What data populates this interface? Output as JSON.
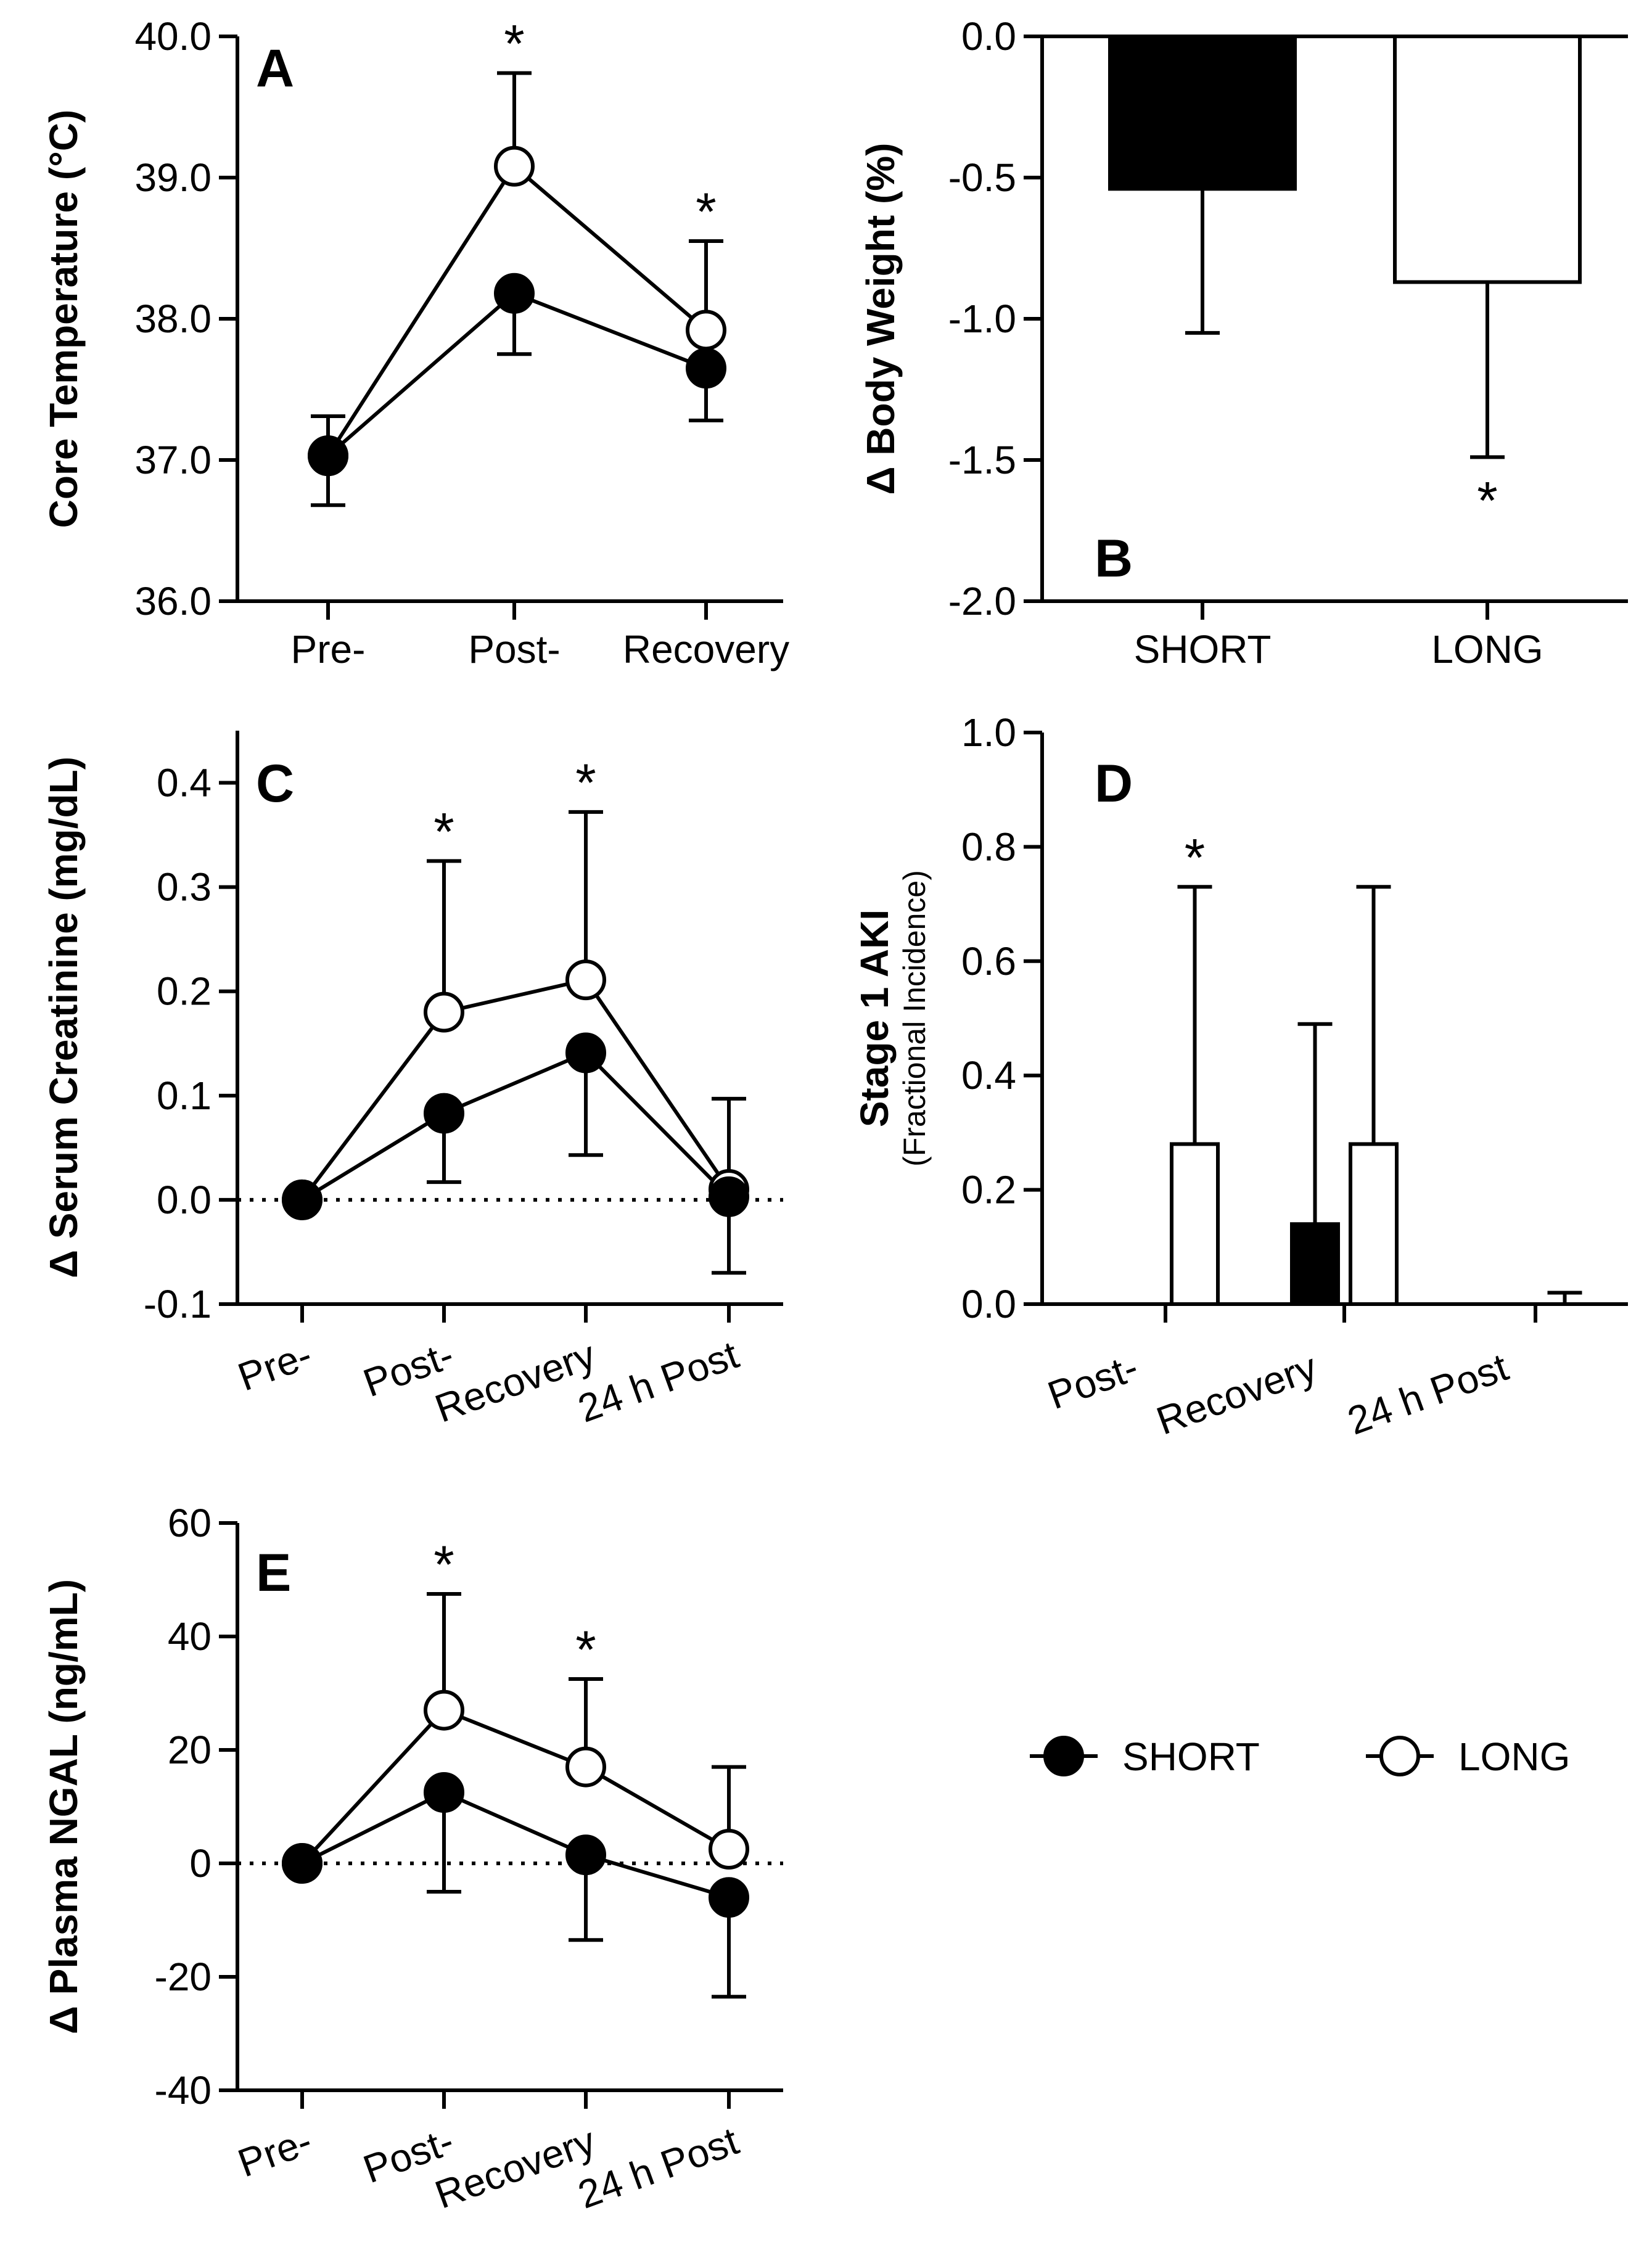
{
  "chart_data": [
    {
      "panel": "A",
      "type": "line",
      "ylabel": "Core Temperature (°C)",
      "ylim": [
        36.0,
        40.0
      ],
      "yticks": [
        "36.0",
        "37.0",
        "38.0",
        "39.0",
        "40.0"
      ],
      "categories": [
        "Pre-",
        "Post-",
        "Recovery"
      ],
      "series": [
        {
          "name": "SHORT",
          "values": [
            37.03,
            38.18,
            37.65
          ],
          "error": [
            0.35,
            0.43,
            0.37
          ]
        },
        {
          "name": "LONG",
          "values": [
            37.03,
            39.08,
            37.92
          ],
          "error": [
            0.28,
            0.66,
            0.63
          ]
        }
      ],
      "significance": [
        "",
        "*",
        "*"
      ]
    },
    {
      "panel": "B",
      "type": "bar",
      "ylabel": "Δ Body Weight  (%)",
      "ylim": [
        -2.0,
        0.0
      ],
      "yticks": [
        "-2.0",
        "-1.5",
        "-1.0",
        "-0.5",
        "0.0"
      ],
      "categories": [
        "SHORT",
        "LONG"
      ],
      "values": [
        -0.54,
        -0.87
      ],
      "error": [
        0.51,
        0.62
      ],
      "significance": [
        "",
        "*"
      ]
    },
    {
      "panel": "C",
      "type": "line",
      "ylabel": "Δ Serum Creatinine (mg/dL)",
      "ylim": [
        -0.1,
        0.45
      ],
      "yticks": [
        "-0.1",
        "0.0",
        "0.1",
        "0.2",
        "0.3",
        "0.4"
      ],
      "categories": [
        "Pre-",
        "Post-",
        "Recovery",
        "24 h Post"
      ],
      "series": [
        {
          "name": "SHORT",
          "values": [
            0.0,
            0.083,
            0.141,
            0.003
          ],
          "error": [
            0,
            0.066,
            0.098,
            0.073
          ]
        },
        {
          "name": "LONG",
          "values": [
            0.0,
            0.18,
            0.211,
            0.01
          ],
          "error": [
            0,
            0.145,
            0.161,
            0.087
          ]
        }
      ],
      "significance": [
        "",
        "*",
        "*",
        ""
      ]
    },
    {
      "panel": "D",
      "type": "bar",
      "ylabel": "Stage 1 AKI",
      "ysublabel": "(Fractional Incidence)",
      "ylim": [
        0.0,
        1.0
      ],
      "yticks": [
        "0.0",
        "0.2",
        "0.4",
        "0.6",
        "0.8",
        "1.0"
      ],
      "categories": [
        "Post-",
        "Recovery",
        "24 h Post"
      ],
      "series": [
        {
          "name": "SHORT",
          "values": [
            0.0,
            0.14,
            0.0
          ],
          "error": [
            0,
            0.35,
            0
          ]
        },
        {
          "name": "LONG",
          "values": [
            0.28,
            0.28,
            0.0
          ],
          "error": [
            0.45,
            0.45,
            0.02
          ]
        }
      ],
      "significance": [
        "*",
        "",
        ""
      ]
    },
    {
      "panel": "E",
      "type": "line",
      "ylabel": "Δ Plasma NGAL (ng/mL)",
      "ylim": [
        -40,
        60
      ],
      "yticks": [
        "-40",
        "-20",
        "0",
        "20",
        "40",
        "60"
      ],
      "categories": [
        "Pre-",
        "Post-",
        "Recovery",
        "24 h Post"
      ],
      "series": [
        {
          "name": "SHORT",
          "values": [
            0,
            12.5,
            1.5,
            -6.0
          ],
          "error": [
            0,
            17.5,
            15.0,
            17.5
          ]
        },
        {
          "name": "LONG",
          "values": [
            0,
            27.0,
            17.0,
            2.5
          ],
          "error": [
            0,
            20.5,
            15.5,
            14.5
          ]
        }
      ],
      "significance": [
        "",
        "*",
        "*",
        ""
      ]
    }
  ],
  "legend": {
    "items": [
      {
        "name": "SHORT",
        "filled": true
      },
      {
        "name": "LONG",
        "filled": false
      }
    ]
  }
}
